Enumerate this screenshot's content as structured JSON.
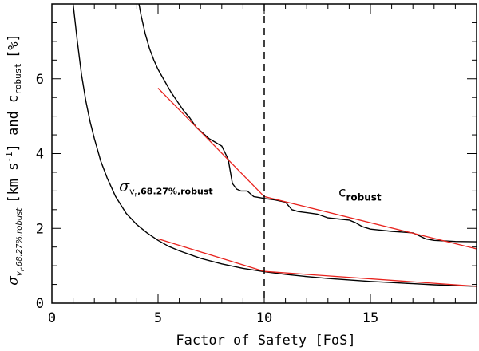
{
  "chart_data": {
    "type": "line",
    "title": "",
    "xlabel": "Factor of Safety [FoS]",
    "ylabel": {
      "sigma": "σ",
      "sigma_sub": "v",
      "sigma_subsub": "r",
      "sigma_sub_rest": ",68.27%,robust",
      "rest": "[km s",
      "sup": "-1",
      "and_c": "] and c",
      "c_sub": "robust",
      "pct": "[%]"
    },
    "xlim": [
      0,
      20
    ],
    "ylim": [
      0,
      8
    ],
    "xticks": [
      0,
      5,
      10,
      15
    ],
    "yticks": [
      0,
      2,
      4,
      6
    ],
    "vline_x": 10,
    "annotations": {
      "sigma_label": {
        "sigma": "σ",
        "sub_v": "v",
        "sub_r": "r",
        "sub_rest": ",68.27%,robust",
        "x": 7.6,
        "y": 3.0
      },
      "c_label": {
        "c": "c",
        "sub": "robust",
        "x": 13.5,
        "y": 2.85
      }
    },
    "series": [
      {
        "name": "sigma_vr_68.27%_robust",
        "color": "#000000",
        "x": [
          1.0,
          1.2,
          1.4,
          1.6,
          1.8,
          2.0,
          2.3,
          2.6,
          3.0,
          3.5,
          4.0,
          4.5,
          5.0,
          5.5,
          6.0,
          7.0,
          8.0,
          9.0,
          10.0,
          11.0,
          12.0,
          13.0,
          14.0,
          15.0,
          16.0,
          17.0,
          18.0,
          19.0,
          20.0
        ],
        "y": [
          8.0,
          7.0,
          6.1,
          5.4,
          4.85,
          4.4,
          3.8,
          3.35,
          2.85,
          2.4,
          2.1,
          1.87,
          1.68,
          1.52,
          1.4,
          1.2,
          1.05,
          0.93,
          0.84,
          0.77,
          0.71,
          0.66,
          0.62,
          0.58,
          0.55,
          0.52,
          0.49,
          0.47,
          0.45
        ]
      },
      {
        "name": "c_robust",
        "color": "#000000",
        "x": [
          4.1,
          4.2,
          4.4,
          4.6,
          4.8,
          5.0,
          5.3,
          5.6,
          5.9,
          6.2,
          6.5,
          6.8,
          7.1,
          7.4,
          7.7,
          8.0,
          8.3,
          8.5,
          8.7,
          8.9,
          9.2,
          9.5,
          9.8,
          10.0,
          10.5,
          11.0,
          11.3,
          11.6,
          12.0,
          12.5,
          13.0,
          13.5,
          14.0,
          14.3,
          14.6,
          15.0,
          15.5,
          16.0,
          16.5,
          17.0,
          17.3,
          17.6,
          18.0,
          19.0,
          20.0
        ],
        "y": [
          8.0,
          7.7,
          7.2,
          6.8,
          6.5,
          6.25,
          5.95,
          5.65,
          5.4,
          5.15,
          4.95,
          4.7,
          4.55,
          4.4,
          4.3,
          4.2,
          3.85,
          3.2,
          3.05,
          3.0,
          3.0,
          2.85,
          2.82,
          2.8,
          2.76,
          2.7,
          2.5,
          2.45,
          2.42,
          2.38,
          2.28,
          2.25,
          2.22,
          2.15,
          2.05,
          1.98,
          1.95,
          1.92,
          1.9,
          1.88,
          1.8,
          1.72,
          1.68,
          1.65,
          1.64
        ]
      },
      {
        "name": "fit_c_robust_segment_1",
        "color": "#e8231e",
        "x": [
          5.0,
          10.0
        ],
        "y": [
          5.75,
          2.85
        ]
      },
      {
        "name": "fit_c_robust_segment_2",
        "color": "#e8231e",
        "x": [
          10.0,
          20.0
        ],
        "y": [
          2.85,
          1.45
        ]
      },
      {
        "name": "fit_sigma_segment_1",
        "color": "#e8231e",
        "x": [
          5.0,
          10.0
        ],
        "y": [
          1.72,
          0.85
        ]
      },
      {
        "name": "fit_sigma_segment_2",
        "color": "#e8231e",
        "x": [
          10.0,
          20.0
        ],
        "y": [
          0.85,
          0.45
        ]
      }
    ]
  }
}
